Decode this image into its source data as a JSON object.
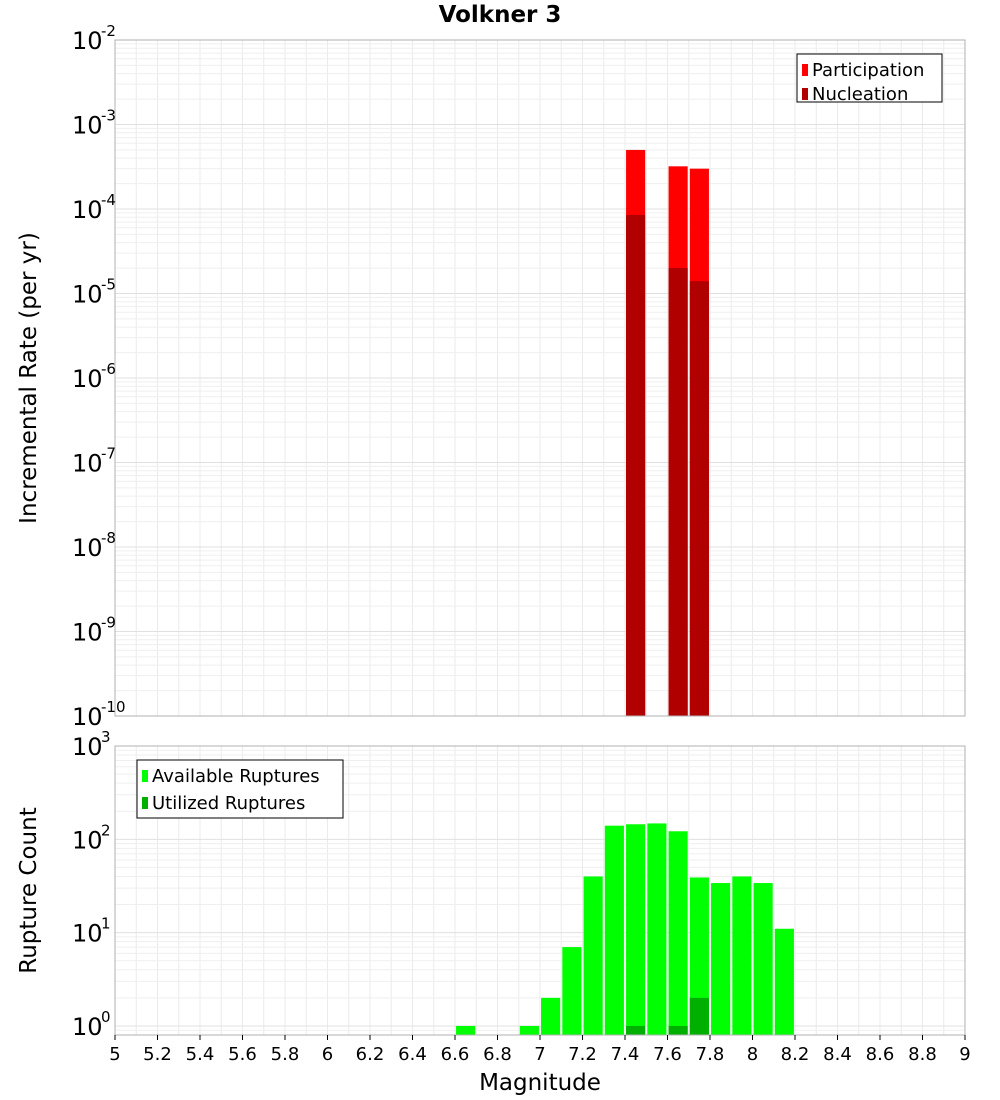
{
  "chart_data": [
    {
      "type": "bar",
      "title": "Volkner 3",
      "xlabel": "",
      "ylabel": "Incremental Rate (per yr)",
      "x_scale": "linear",
      "y_scale": "log",
      "xlim": [
        5,
        9
      ],
      "ylim": [
        1e-10,
        0.01
      ],
      "yticks": [
        {
          "base": "10",
          "exp": "-2"
        },
        {
          "base": "10",
          "exp": "-3"
        },
        {
          "base": "10",
          "exp": "-4"
        },
        {
          "base": "10",
          "exp": "-5"
        },
        {
          "base": "10",
          "exp": "-6"
        },
        {
          "base": "10",
          "exp": "-7"
        },
        {
          "base": "10",
          "exp": "-8"
        },
        {
          "base": "10",
          "exp": "-9"
        },
        {
          "base": "10",
          "exp": "-10"
        }
      ],
      "ytick_values": [
        -2,
        -3,
        -4,
        -5,
        -6,
        -7,
        -8,
        -9,
        -10
      ],
      "grid": true,
      "legend_position": "top-right",
      "bar_width": 0.09,
      "series": [
        {
          "name": "Participation",
          "color": "#ff0000",
          "x": [
            7.45,
            7.65,
            7.75
          ],
          "values": [
            0.0005,
            0.00032,
            0.0003
          ]
        },
        {
          "name": "Nucleation",
          "color": "#b00000",
          "x": [
            7.45,
            7.65,
            7.75
          ],
          "values": [
            8.5e-05,
            2e-05,
            1.4e-05
          ]
        }
      ]
    },
    {
      "type": "bar",
      "title": "",
      "xlabel": "Magnitude",
      "ylabel": "Rupture Count",
      "x_scale": "linear",
      "y_scale": "log",
      "xlim": [
        5,
        9
      ],
      "ylim": [
        0.8,
        1000
      ],
      "xticks": [
        "5",
        "5.2",
        "5.4",
        "5.6",
        "5.8",
        "6",
        "6.2",
        "6.4",
        "6.6",
        "6.8",
        "7",
        "7.2",
        "7.4",
        "7.6",
        "7.8",
        "8",
        "8.2",
        "8.4",
        "8.6",
        "8.8",
        "9"
      ],
      "xtick_values": [
        5,
        5.2,
        5.4,
        5.6,
        5.8,
        6,
        6.2,
        6.4,
        6.6,
        6.8,
        7,
        7.2,
        7.4,
        7.6,
        7.8,
        8,
        8.2,
        8.4,
        8.6,
        8.8,
        9
      ],
      "yticks": [
        {
          "base": "10",
          "exp": "3"
        },
        {
          "base": "10",
          "exp": "2"
        },
        {
          "base": "10",
          "exp": "1"
        },
        {
          "base": "10",
          "exp": "0"
        }
      ],
      "ytick_values": [
        3,
        2,
        1,
        0
      ],
      "grid": true,
      "legend_position": "top-left",
      "bar_width": 0.09,
      "series": [
        {
          "name": "Available Ruptures",
          "color": "#00ff00",
          "x": [
            6.65,
            6.95,
            7.05,
            7.15,
            7.25,
            7.35,
            7.45,
            7.55,
            7.65,
            7.75,
            7.85,
            7.95,
            8.05,
            8.15
          ],
          "values": [
            1,
            1,
            2,
            7,
            40,
            140,
            145,
            148,
            122,
            39,
            34,
            40,
            34,
            11
          ]
        },
        {
          "name": "Utilized Ruptures",
          "color": "#00b000",
          "x": [
            7.45,
            7.65,
            7.75
          ],
          "values": [
            1,
            1,
            2
          ]
        }
      ]
    }
  ]
}
